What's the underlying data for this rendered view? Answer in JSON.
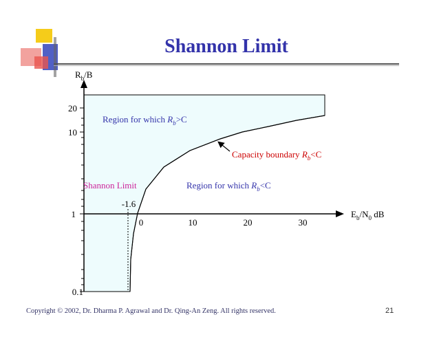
{
  "slide": {
    "title": "Shannon Limit",
    "footer": "Copyright © 2002, Dr. Dharma P. Agrawal and Dr. Qing-An Zeng. All rights reserved.",
    "page_number": "21"
  },
  "colors": {
    "title": "#3333aa",
    "region_fill": "#eefcfd",
    "blue_text": "#3333aa",
    "magenta_text": "#cc2299",
    "red_text": "#cc0000",
    "logo_yellow": "#f5cc1a",
    "logo_blue": "#3344bb",
    "logo_red": "#e8554e"
  },
  "diagram": {
    "y_axis_label_main": "R",
    "y_axis_label_sub": "b",
    "y_axis_label_tail": "/B",
    "x_axis_label_pre": "E",
    "x_axis_label_sub1": "b",
    "x_axis_label_mid": "/N",
    "x_axis_label_sub2": "0",
    "x_axis_label_tail": " dB",
    "y_ticks": [
      "20",
      "10",
      "1",
      "0.1"
    ],
    "x_ticks": [
      "0",
      "10",
      "20",
      "30"
    ],
    "shannon_limit_value": "-1.6",
    "shannon_limit_label": "Shannon Limit",
    "region_above_pre": "Region for which ",
    "region_above_var": "R",
    "region_above_sub": "b",
    "region_above_post": ">C",
    "region_below_pre": "Region for which ",
    "region_below_var": "R",
    "region_below_sub": "b",
    "region_below_post": "<C",
    "boundary_pre": "Capacity boundary ",
    "boundary_var": "R",
    "boundary_sub": "b",
    "boundary_post": "<C"
  },
  "chart_data": {
    "type": "line",
    "series": [
      {
        "name": "Capacity boundary",
        "x": [
          -1.6,
          -1.2,
          0,
          2,
          5,
          10,
          15,
          20,
          30,
          34
        ],
        "y": [
          0.1,
          0.5,
          1,
          2,
          3.5,
          5.5,
          8,
          11,
          17,
          19
        ]
      }
    ],
    "xlim": [
      -10,
      35
    ],
    "ylim": [
      0.1,
      25
    ]
  }
}
